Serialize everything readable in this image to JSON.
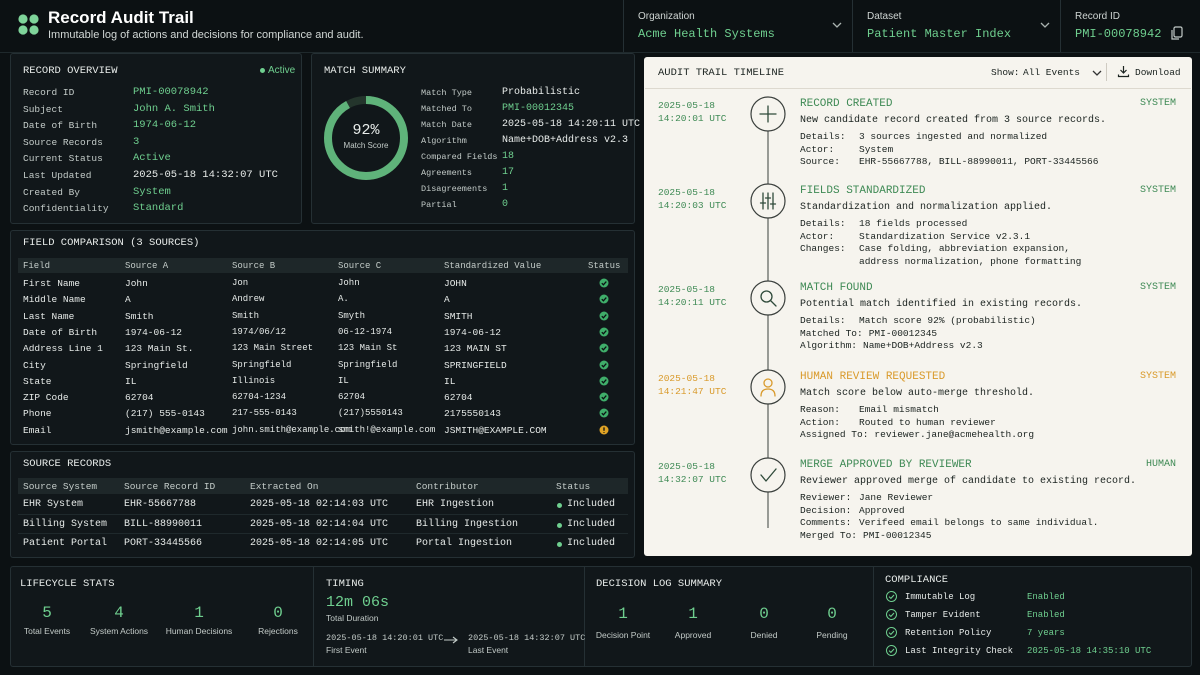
{
  "header": {
    "title": "Record Audit Trail",
    "subtitle": "Immutable log of actions and decisions for compliance and audit.",
    "selectors": [
      {
        "label": "Organization",
        "value": "Acme Health Systems"
      },
      {
        "label": "Dataset",
        "value": "Patient Master Index"
      },
      {
        "label": "Record ID",
        "value": "PMI-00078942"
      }
    ]
  },
  "record_overview": {
    "title": "RECORD OVERVIEW",
    "status": "Active",
    "rows": [
      [
        "Record ID",
        "PMI-00078942"
      ],
      [
        "Subject",
        "John A. Smith"
      ],
      [
        "Date of Birth",
        "1974-06-12"
      ],
      [
        "Source Records",
        "3"
      ],
      [
        "Current Status",
        "Active"
      ],
      [
        "Last Updated",
        "2025-05-18 14:32:07 UTC"
      ],
      [
        "Created By",
        "System"
      ],
      [
        "Confidentiality",
        "Standard"
      ]
    ],
    "value_colors": [
      "#6fcf8f",
      "#6fcf8f",
      "#6fcf8f",
      "#6fcf8f",
      "#6fcf8f",
      "#e8ecea",
      "#6fcf8f",
      "#6fcf8f"
    ]
  },
  "match_summary": {
    "title": "MATCH SUMMARY",
    "score": 92,
    "score_label": "92%",
    "score_caption": "Match Score",
    "rows": [
      [
        "Match Type",
        "Probabilistic"
      ],
      [
        "Matched To",
        "PMI-00012345"
      ],
      [
        "Match Date",
        "2025-05-18 14:20:11 UTC"
      ],
      [
        "Algorithm",
        "Name+DOB+Address v2.3"
      ],
      [
        "Compared Fields",
        "18"
      ],
      [
        "Agreements",
        "17"
      ],
      [
        "Disagreements",
        "1"
      ],
      [
        "Partial",
        "0"
      ]
    ],
    "value_colors": [
      "#e8ecea",
      "#6fcf8f",
      "#e8ecea",
      "#e8ecea",
      "#6fcf8f",
      "#6fcf8f",
      "#6fcf8f",
      "#6fcf8f"
    ]
  },
  "field_comparison": {
    "title": "FIELD COMPARISON (3 SOURCES)",
    "columns": [
      "Field",
      "Source A",
      "Source B",
      "Source C",
      "Standardized Value",
      "Status"
    ],
    "rows": [
      [
        "First Name",
        "John",
        "Jon",
        "John",
        "JOHN"
      ],
      [
        "Middle Name",
        "A",
        "Andrew",
        "A.",
        "A"
      ],
      [
        "Last Name",
        "Smith",
        "Smith",
        "Smyth",
        "SMITH"
      ],
      [
        "Date of Birth",
        "1974-06-12",
        "1974/06/12",
        "06-12-1974",
        "1974-06-12"
      ],
      [
        "Address Line 1",
        "123 Main St.",
        "123 Main Street",
        "123 Main St",
        "123 MAIN ST"
      ],
      [
        "City",
        "Springfield",
        "Springfield",
        "Springfield",
        "SPRINGFIELD"
      ],
      [
        "State",
        "IL",
        "Illinois",
        "IL",
        "IL"
      ],
      [
        "ZIP Code",
        "62704",
        "62704-1234",
        "62704",
        "62704"
      ],
      [
        "Phone",
        "(217) 555-0143",
        "217-555-0143",
        "(217)5550143",
        "2175550143"
      ],
      [
        "Email",
        "jsmith@example.com",
        "john.smith@example.com",
        "smith!@example.com",
        "JSMITH@EXAMPLE.COM"
      ]
    ],
    "status": [
      "ok",
      "ok",
      "ok",
      "ok",
      "ok",
      "ok",
      "ok",
      "ok",
      "ok",
      "warning"
    ]
  },
  "source_records": {
    "title": "SOURCE RECORDS",
    "columns": [
      "Source System",
      "Source Record ID",
      "Extracted On",
      "Contributor",
      "Status"
    ],
    "rows": [
      [
        "EHR System",
        "EHR-55667788",
        "2025-05-18 02:14:03 UTC",
        "EHR Ingestion",
        "Included"
      ],
      [
        "Billing System",
        "BILL-88990011",
        "2025-05-18 02:14:04 UTC",
        "Billing Ingestion",
        "Included"
      ],
      [
        "Patient Portal",
        "PORT-33445566",
        "2025-05-18 02:14:05 UTC",
        "Portal Ingestion",
        "Included"
      ]
    ]
  },
  "timeline": {
    "title": "AUDIT TRAIL TIMELINE",
    "show_label": "Show:",
    "show_value": "All Events",
    "download": "Download",
    "events": [
      {
        "date": "2025-05-18",
        "time": "14:20:01 UTC",
        "title": "RECORD CREATED",
        "actor": "SYSTEM",
        "color": "#3f8a55",
        "description": "New candidate record created from 3 source records.",
        "details": [
          [
            "Details:",
            "3 sources ingested and normalized"
          ],
          [
            "Actor:",
            "System"
          ],
          [
            "Source:",
            "EHR-55667788, BILL-88990011, PORT-33445566"
          ]
        ]
      },
      {
        "date": "2025-05-18",
        "time": "14:20:03 UTC",
        "title": "FIELDS STANDARDIZED",
        "actor": "SYSTEM",
        "color": "#3f8a55",
        "description": "Standardization and normalization applied.",
        "details": [
          [
            "Details:",
            "18 fields processed"
          ],
          [
            "Actor:",
            "Standardization Service v2.3.1"
          ],
          [
            "Changes:",
            "Case folding, abbreviation expansion, address normalization, phone formatting"
          ]
        ]
      },
      {
        "date": "2025-05-18",
        "time": "14:20:11 UTC",
        "title": "MATCH FOUND",
        "actor": "SYSTEM",
        "color": "#3f8a55",
        "description": "Potential match identified in existing records.",
        "details": [
          [
            "Details:",
            "Match score 92% (probabilistic)"
          ],
          [
            "Matched To:",
            "PMI-00012345"
          ],
          [
            "Algorithm:",
            "Name+DOB+Address v2.3"
          ]
        ]
      },
      {
        "date": "2025-05-18",
        "time": "14:21:47 UTC",
        "title": "HUMAN REVIEW REQUESTED",
        "actor": "SYSTEM",
        "color": "#d99a2b",
        "description": "Match score below auto-merge threshold.",
        "details": [
          [
            "Reason:",
            "Email mismatch"
          ],
          [
            "Action:",
            "Routed to human reviewer"
          ],
          [
            "Assigned To:",
            "reviewer.jane@acmehealth.org"
          ]
        ]
      },
      {
        "date": "2025-05-18",
        "time": "14:32:07 UTC",
        "title": "MERGE APPROVED BY REVIEWER",
        "actor": "HUMAN",
        "color": "#3f8a55",
        "description": "Reviewer approved merge of candidate to existing record.",
        "details": [
          [
            "Reviewer:",
            "Jane Reviewer"
          ],
          [
            "Decision:",
            "Approved"
          ],
          [
            "Comments:",
            "Verifeed email belongs to same individual."
          ],
          [
            "Merged To:",
            "PMI-00012345"
          ]
        ]
      }
    ]
  },
  "lifecycle": {
    "title": "LIFECYCLE STATS",
    "stats": [
      {
        "value": 5,
        "label": "Total Events"
      },
      {
        "value": 4,
        "label": "System Actions"
      },
      {
        "value": 1,
        "label": "Human Decisions"
      },
      {
        "value": 0,
        "label": "Rejections"
      }
    ]
  },
  "timing": {
    "title": "TIMING",
    "duration": "12m 06s",
    "duration_label": "Total Duration",
    "start": "2025-05-18 14:20:01 UTC",
    "start_label": "First Event",
    "end": "2025-05-18 14:32:07 UTC",
    "end_label": "Last Event"
  },
  "decision_log": {
    "title": "DECISION LOG SUMMARY",
    "stats": [
      {
        "value": 1,
        "label": "Decision Point"
      },
      {
        "value": 1,
        "label": "Approved"
      },
      {
        "value": 0,
        "label": "Denied"
      },
      {
        "value": 0,
        "label": "Pending"
      }
    ]
  },
  "compliance": {
    "title": "COMPLIANCE",
    "rows": [
      [
        "Immutable Log",
        "Enabled"
      ],
      [
        "Tamper Evident",
        "Enabled"
      ],
      [
        "Retention Policy",
        "7 years"
      ],
      [
        "Last Integrity Check",
        "2025-05-18 14:35:10 UTC"
      ]
    ]
  }
}
